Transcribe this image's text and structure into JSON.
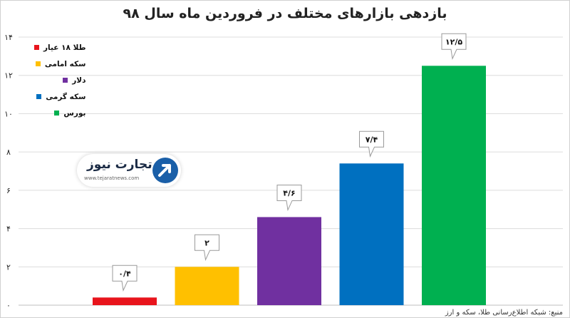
{
  "chart_data": {
    "type": "bar",
    "title": "بازدهی بازارهای مختلف در فروردین ماه سال ۹۸",
    "categories": [
      "طلا ۱۸ عیار",
      "سکه امامی",
      "دلار",
      "سکه گرمی",
      "بورس"
    ],
    "values": [
      0.4,
      2,
      4.6,
      7.4,
      12.5
    ],
    "data_labels": [
      "۰/۴",
      "۲",
      "۴/۶",
      "۷/۴",
      "۱۲/۵"
    ],
    "colors": [
      "#e8141c",
      "#ffc000",
      "#7030a0",
      "#0070c0",
      "#00b050"
    ],
    "ylim": [
      0,
      14
    ],
    "yticks": [
      0,
      2,
      4,
      6,
      8,
      10,
      12,
      14
    ],
    "ytick_labels": [
      "۰",
      "۲",
      "۴",
      "۶",
      "۸",
      "۱۰",
      "۱۲",
      "۱۴"
    ],
    "grid": true,
    "legend": "top-left",
    "source": "منبع: شبکه اطلاع‌رسانی طلا، سکه و ارز"
  },
  "logo": {
    "name": "تجارت نیوز",
    "url": "www.tejaratnews.com",
    "icon": "arrow-up-right-icon"
  }
}
